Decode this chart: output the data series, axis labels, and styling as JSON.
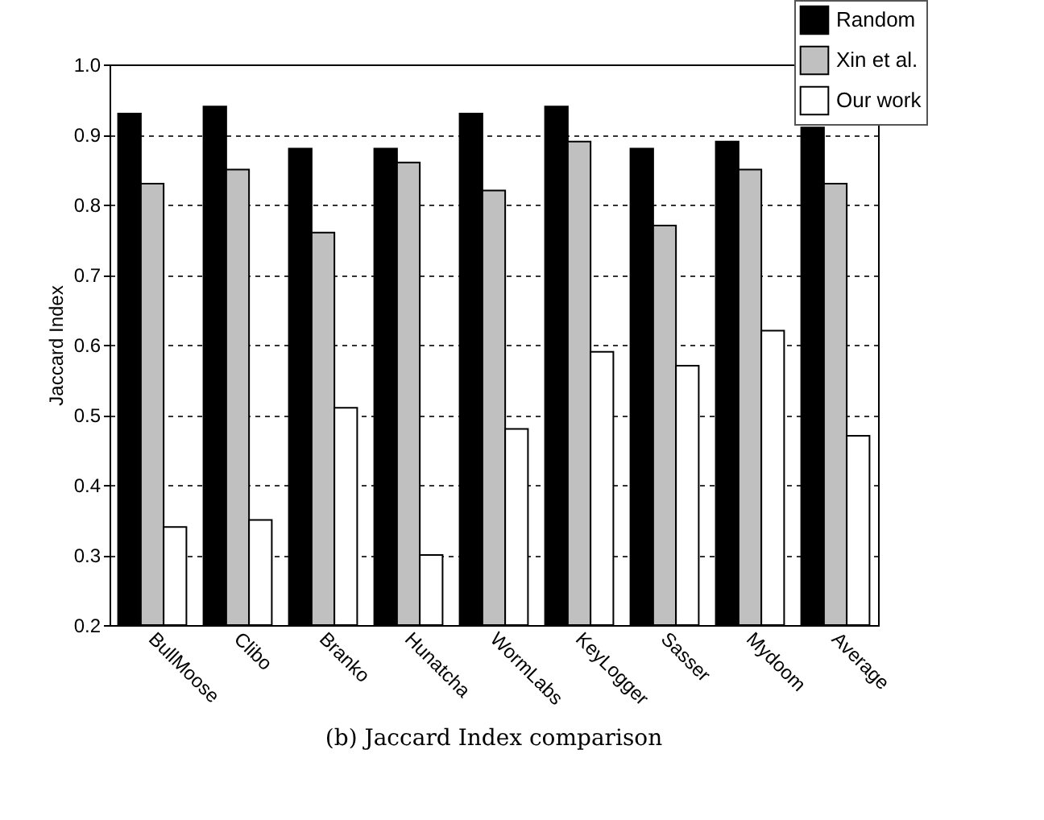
{
  "chart_data": {
    "type": "bar",
    "title": "(b) Jaccard Index comparison",
    "ylabel": "Jaccard Index",
    "categories": [
      "BullMoose",
      "Clibo",
      "Branko",
      "Hunatcha",
      "WormLabs",
      "KeyLogger",
      "Sasser",
      "Mydoom",
      "Average"
    ],
    "series": [
      {
        "name": "Random",
        "color": "#000000",
        "values": [
          0.93,
          0.94,
          0.88,
          0.88,
          0.93,
          0.94,
          0.88,
          0.89,
          0.91
        ]
      },
      {
        "name": "Xin et al.",
        "color": "#c0c0c0",
        "values": [
          0.83,
          0.85,
          0.76,
          0.86,
          0.82,
          0.89,
          0.77,
          0.85,
          0.83
        ]
      },
      {
        "name": "Our work",
        "color": "#ffffff",
        "values": [
          0.34,
          0.35,
          0.51,
          0.3,
          0.48,
          0.59,
          0.57,
          0.62,
          0.47
        ]
      }
    ],
    "ylim": [
      0.2,
      1.0
    ],
    "yticks": [
      0.2,
      0.3,
      0.4,
      0.5,
      0.6,
      0.7,
      0.8,
      0.9,
      {
        "value": 1,
        "label": "1.0"
      }
    ],
    "grid": "y",
    "legend": "top right"
  }
}
